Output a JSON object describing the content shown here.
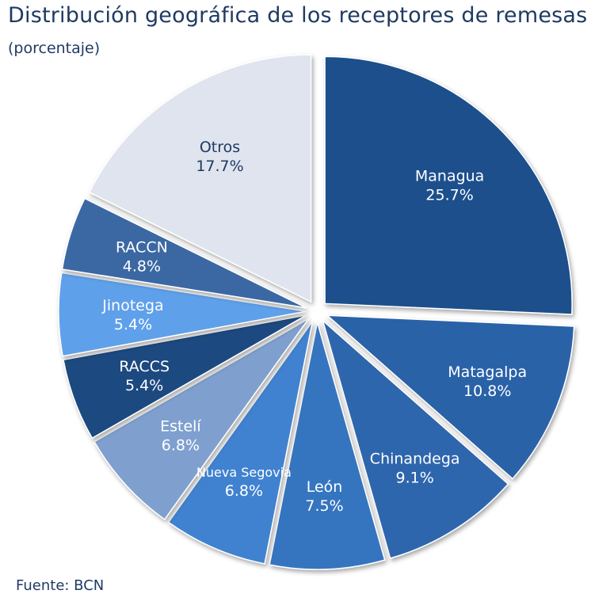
{
  "title": "Distribución geográfica de los receptores de remesas",
  "subtitle": "(porcentaje)",
  "source": "Fuente: BCN",
  "chart_data": {
    "type": "pie",
    "title": "Distribución geográfica de los receptores de remesas",
    "subtitle": "(porcentaje)",
    "labels": [
      "Managua",
      "Matagalpa",
      "Chinandega",
      "León",
      "Nueva Segovia",
      "Estelí",
      "RACCS",
      "Jinotega",
      "RACCN",
      "Otros"
    ],
    "values": [
      25.7,
      10.8,
      9.1,
      7.5,
      6.8,
      6.8,
      5.4,
      5.4,
      4.8,
      17.7
    ],
    "value_labels": [
      "25.7%",
      "10.8%",
      "9.1%",
      "7.5%",
      "6.8%",
      "6.8%",
      "5.4%",
      "5.4%",
      "4.8%",
      "17.7%"
    ],
    "colors": [
      "#1d4f8c",
      "#2a62a8",
      "#2e66ad",
      "#3574c0",
      "#3f82d0",
      "#7fa0cf",
      "#1b4980",
      "#5fa0ea",
      "#3a68a3",
      "#dfe4ee"
    ],
    "label_colors": [
      "#ffffff",
      "#ffffff",
      "#ffffff",
      "#ffffff",
      "#ffffff",
      "#ffffff",
      "#ffffff",
      "#ffffff",
      "#ffffff",
      "#1f3a63"
    ],
    "exploded": "all"
  }
}
